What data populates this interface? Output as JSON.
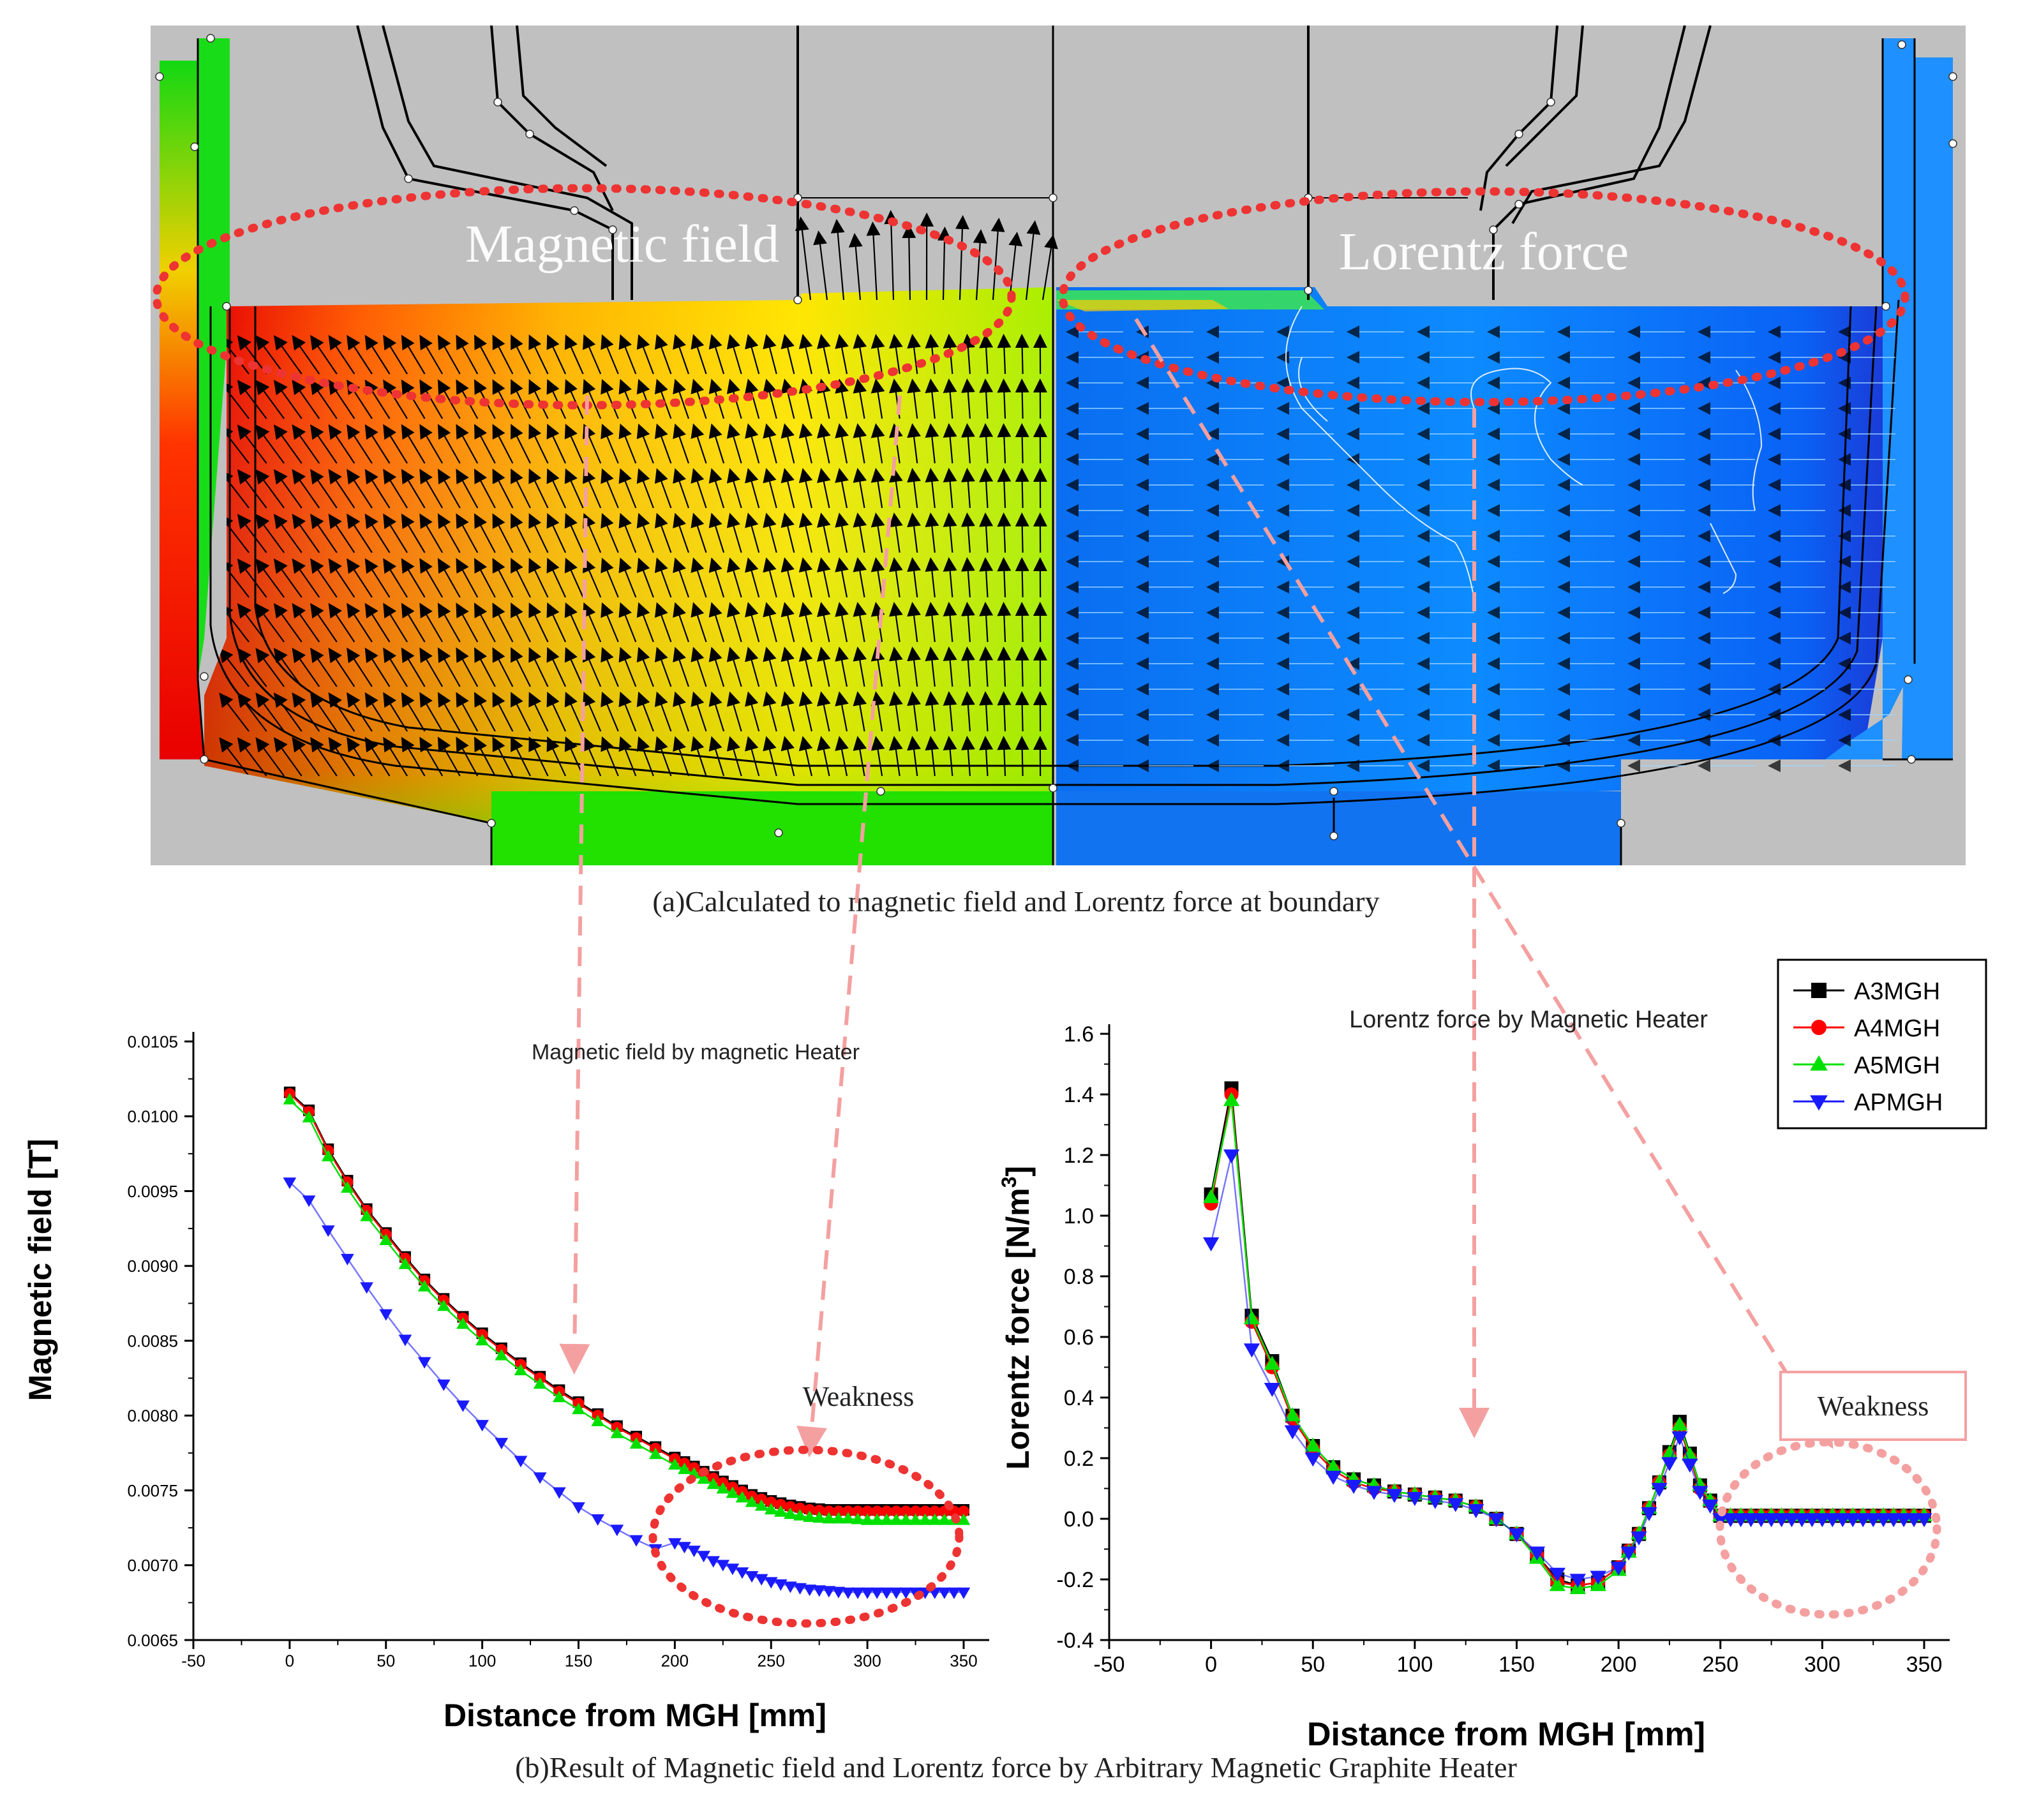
{
  "figure": {
    "panel_a": {
      "caption": "(a)Calculated to magnetic field and Lorentz force at boundary",
      "left_label": "Magnetic field",
      "right_label": "Lorentz force"
    },
    "panel_b_caption": "(b)Result of Magnetic field  and Lorentz force by Arbitrary Magnetic Graphite Heater",
    "colors": {
      "A3MGH": "#000000",
      "A4MGH": "#ff0000",
      "A5MGH": "#00e000",
      "APMGH": "#1a1aff",
      "annotation": "#ee3333",
      "dashed_arrow": "#f4a0a0"
    }
  },
  "legend": {
    "items": [
      {
        "name": "A3MGH",
        "marker": "square"
      },
      {
        "name": "A4MGH",
        "marker": "circle"
      },
      {
        "name": "A5MGH",
        "marker": "triangle-up"
      },
      {
        "name": "APMGH",
        "marker": "triangle-down"
      }
    ]
  },
  "chart_data": [
    {
      "type": "line",
      "title": "Magnetic field by magnetic Heater",
      "xlabel": "Distance from MGH [mm]",
      "ylabel": "Magnetic field [T]",
      "xlim": [
        -50,
        350
      ],
      "ylim": [
        0.0065,
        0.0105
      ],
      "xticks": [
        "-50",
        "0",
        "50",
        "100",
        "150",
        "200",
        "250",
        "300",
        "350"
      ],
      "yticks": [
        "0.0065",
        "0.0070",
        "0.0075",
        "0.0080",
        "0.0085",
        "0.0090",
        "0.0095",
        "0.0100",
        "0.0105"
      ],
      "annotation": "Weakness",
      "x": [
        0,
        10,
        20,
        30,
        40,
        50,
        60,
        70,
        80,
        90,
        100,
        110,
        120,
        130,
        140,
        150,
        160,
        170,
        180,
        190,
        200,
        210,
        220,
        230,
        240,
        250,
        260,
        270,
        280,
        290,
        300,
        310,
        320,
        330,
        340,
        350
      ],
      "series": [
        {
          "name": "A3MGH",
          "values": [
            0.01016,
            0.01004,
            0.00978,
            0.00957,
            0.00938,
            0.00922,
            0.00906,
            0.00891,
            0.00878,
            0.00866,
            0.00855,
            0.00845,
            0.00835,
            0.00826,
            0.00817,
            0.00809,
            0.00801,
            0.00793,
            0.00786,
            0.00779,
            0.00772,
            0.00766,
            0.00759,
            0.00753,
            0.00747,
            0.00743,
            0.0074,
            0.00738,
            0.00737,
            0.00737,
            0.00737,
            0.00737,
            0.00737,
            0.00737,
            0.00737,
            0.00737
          ]
        },
        {
          "name": "A4MGH",
          "values": [
            0.01015,
            0.01003,
            0.00977,
            0.00956,
            0.00937,
            0.00921,
            0.00905,
            0.0089,
            0.00877,
            0.00865,
            0.00854,
            0.00844,
            0.00834,
            0.00825,
            0.00816,
            0.00808,
            0.008,
            0.00792,
            0.00785,
            0.00778,
            0.00771,
            0.00765,
            0.00758,
            0.00752,
            0.00746,
            0.00742,
            0.00739,
            0.00737,
            0.00736,
            0.00736,
            0.00736,
            0.00736,
            0.00736,
            0.00736,
            0.00736,
            0.00736
          ]
        },
        {
          "name": "A5MGH",
          "values": [
            0.01011,
            0.00999,
            0.00973,
            0.00952,
            0.00933,
            0.00917,
            0.00901,
            0.00886,
            0.00873,
            0.00861,
            0.0085,
            0.0084,
            0.0083,
            0.00821,
            0.00812,
            0.00804,
            0.00796,
            0.00788,
            0.00781,
            0.00774,
            0.00767,
            0.00761,
            0.00754,
            0.00748,
            0.00742,
            0.00737,
            0.00734,
            0.00732,
            0.00731,
            0.00731,
            0.0073,
            0.0073,
            0.0073,
            0.0073,
            0.0073,
            0.0073
          ]
        },
        {
          "name": "APMGH",
          "values": [
            0.00956,
            0.00944,
            0.00924,
            0.00905,
            0.00886,
            0.00868,
            0.00851,
            0.00836,
            0.00821,
            0.00807,
            0.00794,
            0.00782,
            0.0077,
            0.00759,
            0.00749,
            0.00739,
            0.00731,
            0.00724,
            0.00717,
            0.00711,
            0.00715,
            0.0071,
            0.00703,
            0.00698,
            0.00693,
            0.00689,
            0.00686,
            0.00684,
            0.00683,
            0.00682,
            0.00682,
            0.00682,
            0.00682,
            0.00682,
            0.00682,
            0.00682
          ]
        }
      ]
    },
    {
      "type": "line",
      "title": "Lorentz force by Magnetic Heater",
      "xlabel": "Distance from MGH [mm]",
      "ylabel": "Lorentz force [N/m",
      "ylabel_sup": "3",
      "ylabel_end": "]",
      "xlim": [
        -50,
        350
      ],
      "ylim": [
        -0.4,
        1.6
      ],
      "xticks": [
        "-50",
        "0",
        "50",
        "100",
        "150",
        "200",
        "250",
        "300",
        "350"
      ],
      "yticks": [
        "-0.4",
        "-0.2",
        "0.0",
        "0.2",
        "0.4",
        "0.6",
        "0.8",
        "1.0",
        "1.2",
        "1.4",
        "1.6"
      ],
      "annotation": "Weakness",
      "x": [
        0,
        10,
        20,
        30,
        40,
        50,
        60,
        70,
        80,
        90,
        100,
        110,
        120,
        130,
        140,
        150,
        160,
        170,
        180,
        190,
        200,
        210,
        220,
        230,
        240,
        250,
        260,
        270,
        280,
        290,
        300,
        310,
        320,
        330,
        340,
        350
      ],
      "series": [
        {
          "name": "A3MGH",
          "values": [
            1.07,
            1.42,
            0.67,
            0.52,
            0.34,
            0.24,
            0.17,
            0.13,
            0.11,
            0.09,
            0.08,
            0.07,
            0.06,
            0.04,
            0.0,
            -0.05,
            -0.12,
            -0.2,
            -0.22,
            -0.21,
            -0.16,
            -0.05,
            0.12,
            0.32,
            0.11,
            0.01,
            0.01,
            0.01,
            0.01,
            0.01,
            0.01,
            0.01,
            0.01,
            0.01,
            0.01,
            0.01
          ]
        },
        {
          "name": "A4MGH",
          "values": [
            1.04,
            1.4,
            0.65,
            0.5,
            0.33,
            0.23,
            0.16,
            0.12,
            0.1,
            0.09,
            0.08,
            0.07,
            0.06,
            0.04,
            0.0,
            -0.05,
            -0.12,
            -0.21,
            -0.22,
            -0.21,
            -0.16,
            -0.05,
            0.12,
            0.3,
            0.1,
            0.01,
            0.01,
            0.01,
            0.01,
            0.01,
            0.01,
            0.01,
            0.01,
            0.01,
            0.01,
            0.01
          ]
        },
        {
          "name": "A5MGH",
          "values": [
            1.06,
            1.38,
            0.66,
            0.51,
            0.34,
            0.24,
            0.17,
            0.13,
            0.11,
            0.09,
            0.08,
            0.07,
            0.06,
            0.04,
            0.0,
            -0.05,
            -0.13,
            -0.22,
            -0.23,
            -0.22,
            -0.17,
            -0.05,
            0.12,
            0.31,
            0.11,
            0.01,
            0.01,
            0.01,
            0.01,
            0.01,
            0.01,
            0.01,
            0.01,
            0.01,
            0.01,
            0.01
          ]
        },
        {
          "name": "APMGH",
          "values": [
            0.91,
            1.2,
            0.56,
            0.43,
            0.29,
            0.2,
            0.14,
            0.11,
            0.09,
            0.08,
            0.07,
            0.06,
            0.05,
            0.03,
            0.0,
            -0.05,
            -0.11,
            -0.18,
            -0.2,
            -0.19,
            -0.16,
            -0.06,
            0.1,
            0.27,
            0.09,
            0.0,
            0.0,
            0.0,
            0.0,
            0.0,
            0.0,
            0.0,
            0.0,
            0.0,
            0.0,
            0.0
          ]
        }
      ]
    }
  ]
}
